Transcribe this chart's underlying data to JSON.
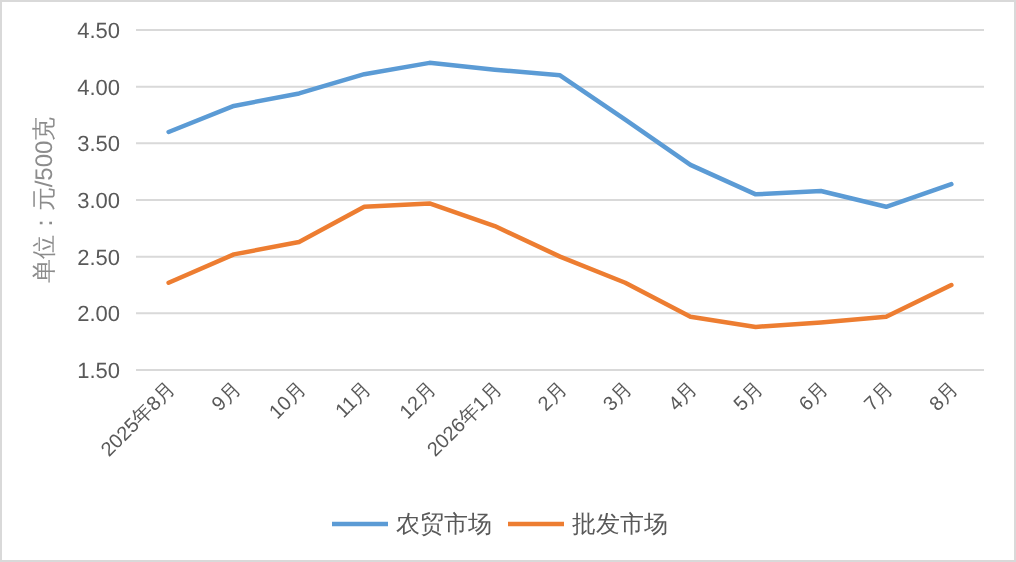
{
  "chart_data": {
    "type": "line",
    "ylabel": "单位：元/500克",
    "categories": [
      "2025年8月",
      "9月",
      "10月",
      "11月",
      "12月",
      "2026年1月",
      "2月",
      "3月",
      "4月",
      "5月",
      "6月",
      "7月",
      "8月"
    ],
    "series": [
      {
        "name": "农贸市场",
        "color": "#5b9bd5",
        "values": [
          3.6,
          3.83,
          3.94,
          4.11,
          4.21,
          4.15,
          4.1,
          3.71,
          3.31,
          3.05,
          3.08,
          2.94,
          3.14
        ]
      },
      {
        "name": "批发市场",
        "color": "#ed7d31",
        "values": [
          2.27,
          2.52,
          2.63,
          2.94,
          2.97,
          2.77,
          2.5,
          2.27,
          1.97,
          1.88,
          1.92,
          1.97,
          2.25
        ]
      }
    ],
    "ylim": [
      1.5,
      4.5
    ],
    "yticks": [
      {
        "value": 1.5,
        "label": "1.50"
      },
      {
        "value": 2,
        "label": "2.00"
      },
      {
        "value": 2.5,
        "label": "2.50"
      },
      {
        "value": 3,
        "label": "3.00"
      },
      {
        "value": 3.5,
        "label": "3.50"
      },
      {
        "value": 4,
        "label": "4.00"
      },
      {
        "value": 4.5,
        "label": "4.50"
      }
    ],
    "grid": "y",
    "legend": "bottom",
    "marker": "none",
    "line_style": "solid"
  }
}
